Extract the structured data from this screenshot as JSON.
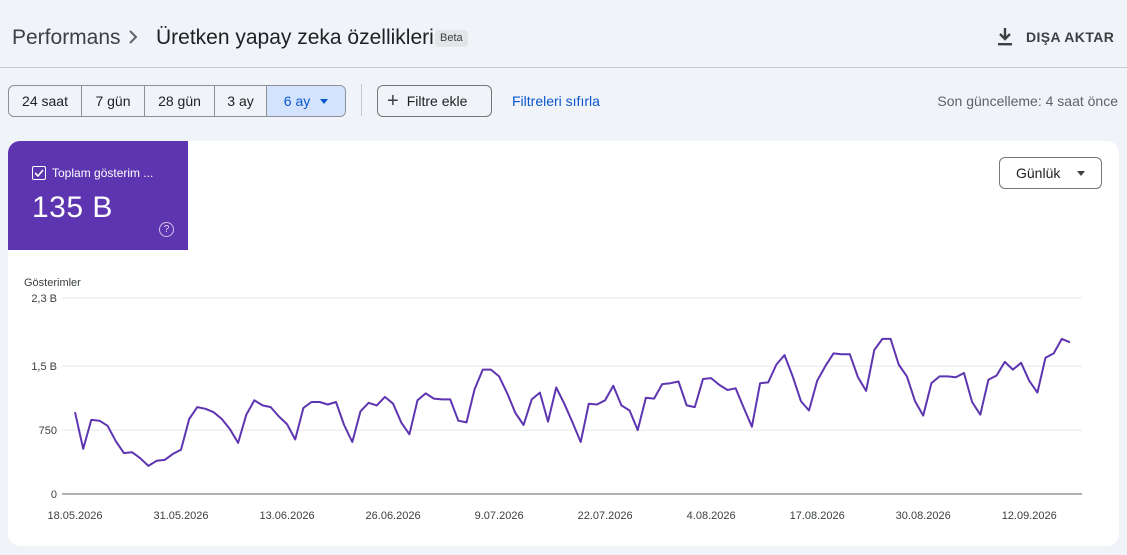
{
  "header": {
    "breadcrumb_root": "Performans",
    "title": "Üretken yapay zeka özellikleri",
    "badge": "Beta",
    "export_label": "DIŞA AKTAR",
    "icons": {
      "separator": "chevron-right-icon",
      "export": "download-icon"
    }
  },
  "toolbar": {
    "ranges": [
      "24 saat",
      "7 gün",
      "28 gün",
      "3 ay",
      "6 ay"
    ],
    "selected_range": "6 ay",
    "add_filter_label": "Filtre ekle",
    "reset_filters_label": "Filtreleri sıfırla",
    "last_updated": "Son güncelleme: 4 saat önce"
  },
  "metric": {
    "label": "Toplam gösterim ...",
    "value": "135 B",
    "help_symbol": "?",
    "checked": true,
    "color": "#5e35b1"
  },
  "granularity": {
    "label": "Günlük"
  },
  "colors": {
    "accent": "#0b57d0",
    "series": "#5e35b1",
    "selected_bg": "#d3e3fd"
  },
  "chart_data": {
    "type": "line",
    "ylabel": "Gösterimler",
    "yticks": [
      {
        "value": 0,
        "label": "0"
      },
      {
        "value": 750,
        "label": "750"
      },
      {
        "value": 1500,
        "label": "1,5 B"
      },
      {
        "value": 2300,
        "label": "2,3 B"
      }
    ],
    "ylim": [
      0,
      2300
    ],
    "grid": true,
    "x_tick_labels": [
      "18.05.2026",
      "31.05.2026",
      "13.06.2026",
      "26.06.2026",
      "9.07.2026",
      "22.07.2026",
      "4.08.2026",
      "17.08.2026",
      "30.08.2026",
      "12.09.2026"
    ],
    "x_tick_every": 13,
    "series": [
      {
        "values": [
          960,
          530,
          870,
          860,
          800,
          620,
          480,
          490,
          420,
          330,
          390,
          400,
          470,
          520,
          880,
          1020,
          1000,
          960,
          880,
          760,
          600,
          930,
          1100,
          1040,
          1020,
          910,
          820,
          640,
          1010,
          1080,
          1080,
          1050,
          1080,
          810,
          610,
          970,
          1070,
          1040,
          1140,
          1060,
          840,
          700,
          1100,
          1180,
          1120,
          1110,
          1110,
          860,
          840,
          1230,
          1460,
          1460,
          1380,
          1180,
          950,
          810,
          1110,
          1190,
          850,
          1250,
          1060,
          840,
          610,
          1060,
          1050,
          1100,
          1270,
          1040,
          980,
          750,
          1130,
          1120,
          1290,
          1300,
          1320,
          1040,
          1020,
          1350,
          1360,
          1280,
          1220,
          1240,
          1010,
          790,
          1300,
          1310,
          1520,
          1630,
          1380,
          1090,
          980,
          1330,
          1500,
          1650,
          1640,
          1640,
          1370,
          1210,
          1690,
          1820,
          1820,
          1520,
          1380,
          1090,
          920,
          1300,
          1380,
          1380,
          1370,
          1420,
          1080,
          930,
          1340,
          1390,
          1550,
          1460,
          1540,
          1330,
          1190,
          1600,
          1650,
          1820,
          1780
        ]
      }
    ]
  }
}
